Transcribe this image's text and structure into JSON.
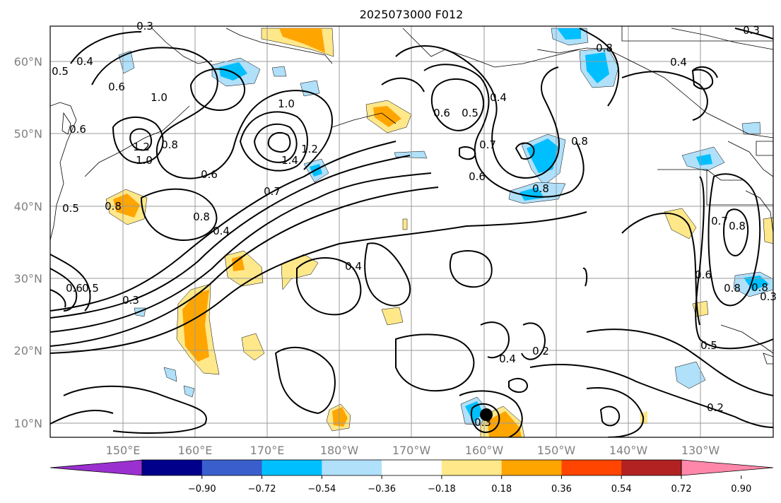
{
  "title": "2025073000 F012",
  "map": {
    "lat_labels": [
      "60°N",
      "50°N",
      "40°N",
      "30°N",
      "20°N",
      "10°N"
    ],
    "lon_labels": [
      "150°E",
      "160°E",
      "170°E",
      "180°W",
      "170°W",
      "160°W",
      "150°W",
      "140°W",
      "130°W"
    ],
    "contour_labels": [
      "0.3",
      "0.4",
      "0.6",
      "0.5",
      "1.0",
      "1.2",
      "1.0",
      "0.8",
      "0.6",
      "0.8",
      "1.0",
      "1.2",
      "1.4",
      "0.6",
      "0.7",
      "0.8",
      "0.4",
      "0.3",
      "0.5",
      "0.4",
      "0.6",
      "0.5",
      "0.4",
      "0.7",
      "0.6",
      "0.8",
      "0.8",
      "0.8",
      "0.3",
      "0.4",
      "0.7",
      "0.8",
      "0.6",
      "0.8",
      "0.5",
      "0.2",
      "0.2",
      "0.4",
      "0.3",
      "0.6",
      "0.5",
      "0.8",
      "0.3"
    ],
    "tropical_storm_marker": "storm-center"
  },
  "colorbar": {
    "tick_labels": [
      "−0.90",
      "−0.72",
      "−0.54",
      "−0.36",
      "−0.18",
      "0.18",
      "0.36",
      "0.54",
      "0.72",
      "0.90"
    ],
    "colors": [
      "#9b30d0",
      "#00008b",
      "#3a5fcd",
      "#00bfff",
      "#b0e0fa",
      "#ffffff",
      "#ffe88a",
      "#ffa500",
      "#ff4500",
      "#b22222",
      "#ff88aa"
    ]
  }
}
